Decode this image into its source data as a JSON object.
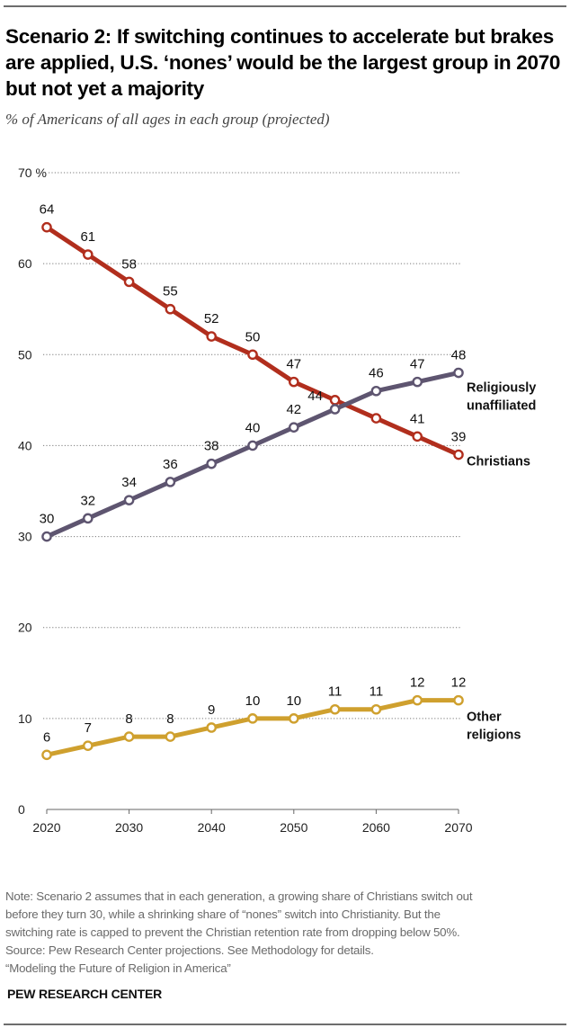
{
  "header": {
    "title": "Scenario 2: If switching continues to accelerate but brakes are applied, U.S. ‘nones’ would be the largest group in 2070 but not yet a majority",
    "subtitle": "% of Americans of all ages in each group (projected)"
  },
  "footer": {
    "note_lines": [
      "Note: Scenario 2 assumes that in each generation, a growing share of Christians switch out",
      "before they turn 30, while a shrinking share of “nones” switch into Christianity. But the",
      "switching rate is capped to prevent the Christian retention rate from dropping below 50%.",
      "Source: Pew Research Center projections. See Methodology for details.",
      "“Modeling the Future of Religion in America”"
    ],
    "brand": "PEW RESEARCH CENTER"
  },
  "chart_data": {
    "type": "line",
    "title": "Scenario 2: If switching continues to accelerate but brakes are applied, U.S. ‘nones’ would be the largest group in 2070 but not yet a majority",
    "subtitle": "% of Americans of all ages in each group (projected)",
    "xlabel": "",
    "ylabel": "%",
    "x": [
      2020,
      2025,
      2030,
      2035,
      2040,
      2045,
      2050,
      2055,
      2060,
      2065,
      2070
    ],
    "xticks": [
      2020,
      2030,
      2040,
      2050,
      2060,
      2070
    ],
    "xtick_labels": [
      "2020",
      "2030",
      "2040",
      "2050",
      "2060",
      "2070"
    ],
    "xlim": [
      2020,
      2070
    ],
    "ylim": [
      0,
      70
    ],
    "yticks": [
      0,
      10,
      20,
      30,
      40,
      50,
      60,
      70
    ],
    "ytick_labels": [
      "0",
      "10",
      "20",
      "30",
      "40",
      "50",
      "60",
      "70 %"
    ],
    "grid": true,
    "legend": "direct labels at right end of lines",
    "series": [
      {
        "name": "Christians",
        "label_lines": [
          "Christians"
        ],
        "color": "#B12E1D",
        "values": [
          64,
          61,
          58,
          55,
          52,
          50,
          47,
          45,
          43,
          41,
          39
        ],
        "data_labels": [
          "64",
          "61",
          "58",
          "55",
          "52",
          "50",
          "47",
          null,
          null,
          "41",
          "39"
        ]
      },
      {
        "name": "Religiously unaffiliated",
        "label_lines": [
          "Religiously",
          "unaffiliated"
        ],
        "color": "#5E5570",
        "values": [
          30,
          32,
          34,
          36,
          38,
          40,
          42,
          44,
          46,
          47,
          48
        ],
        "data_labels": [
          "30",
          "32",
          "34",
          "36",
          "38",
          "40",
          "42",
          "44",
          "46",
          "47",
          "48"
        ]
      },
      {
        "name": "Other religions",
        "label_lines": [
          "Other",
          "religions"
        ],
        "color": "#CFA02E",
        "values": [
          6,
          7,
          8,
          8,
          9,
          10,
          10,
          11,
          11,
          12,
          12
        ],
        "data_labels": [
          "6",
          "7",
          "8",
          "8",
          "9",
          "10",
          "10",
          "11",
          "11",
          "12",
          "12"
        ]
      }
    ]
  }
}
